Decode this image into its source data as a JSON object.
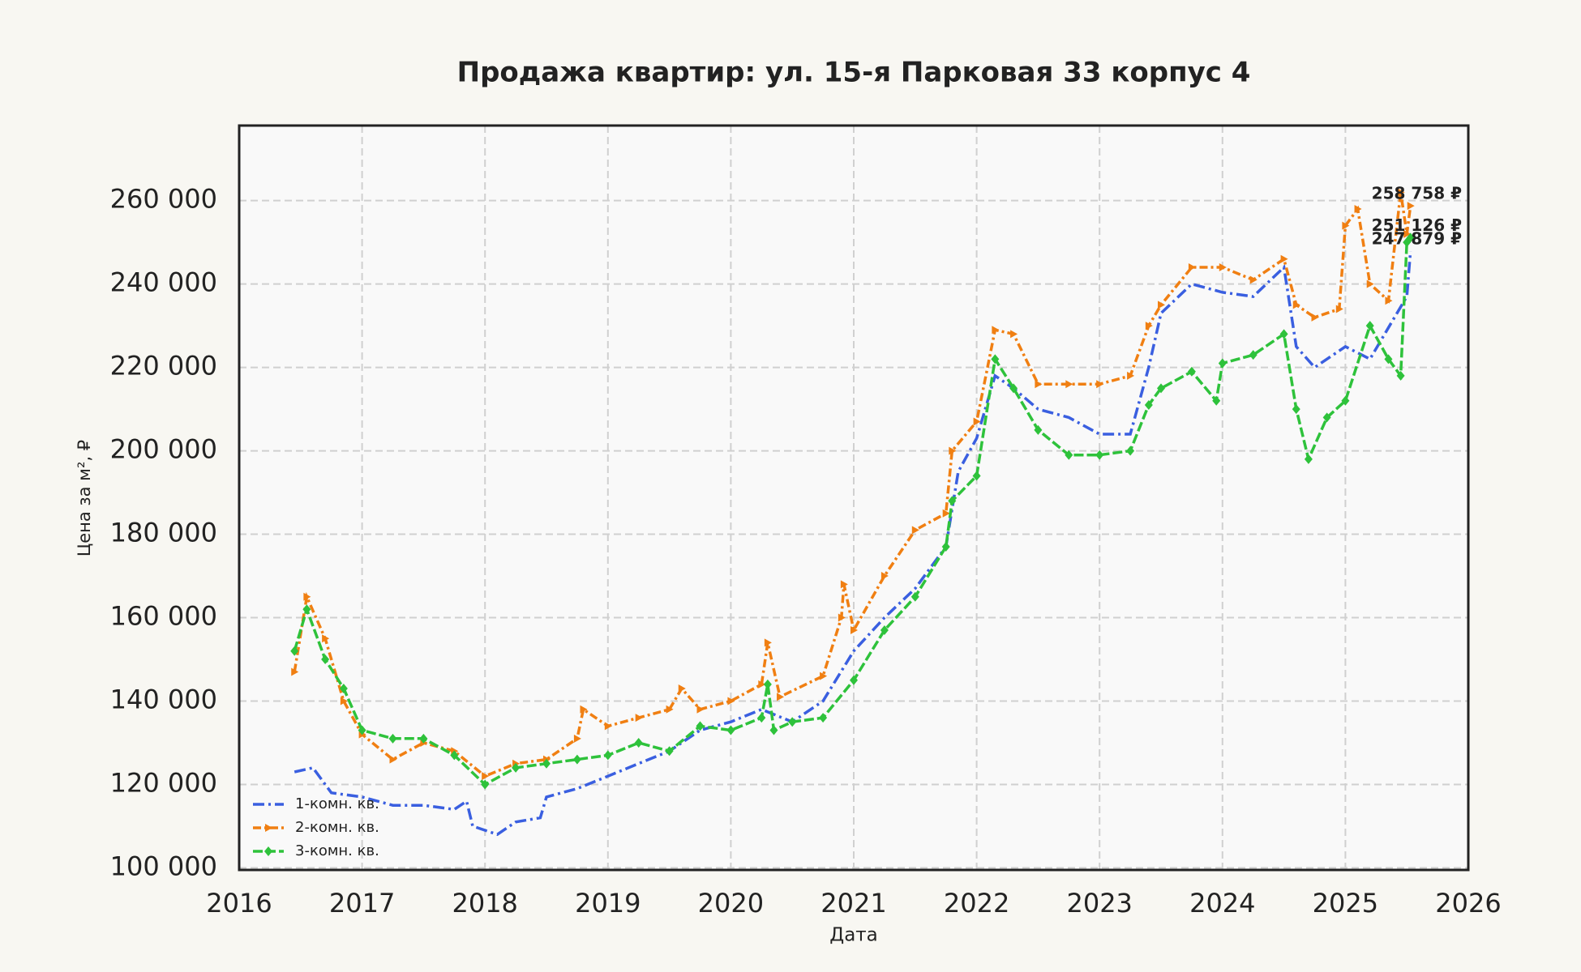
{
  "chart_data": {
    "type": "line",
    "title": "Продажа квартир: ул. 15-я Парковая 33 корпус 4",
    "x_label": "Дата",
    "y_label": "Цена за м², ₽",
    "xlim": [
      2016,
      2026
    ],
    "xticks": [
      2016,
      2017,
      2018,
      2019,
      2020,
      2021,
      2022,
      2023,
      2024,
      2025,
      2026
    ],
    "ylim": [
      99500,
      278000
    ],
    "yticks": [
      {
        "value": 100000,
        "label": "100 000"
      },
      {
        "value": 120000,
        "label": "120 000"
      },
      {
        "value": 140000,
        "label": "140 000"
      },
      {
        "value": 160000,
        "label": "160 000"
      },
      {
        "value": 180000,
        "label": "180 000"
      },
      {
        "value": 200000,
        "label": "200 000"
      },
      {
        "value": 220000,
        "label": "220 000"
      },
      {
        "value": 240000,
        "label": "240 000"
      },
      {
        "value": 260000,
        "label": "260 000"
      }
    ],
    "grid": true,
    "legend": "lower left",
    "series": [
      {
        "name": "1-комн. кв.",
        "color": "#3a5fe0",
        "marker": "none",
        "end_label": "247 879 ₽",
        "x": [
          2016.45,
          2016.6,
          2016.75,
          2017.0,
          2017.25,
          2017.5,
          2017.75,
          2017.85,
          2017.9,
          2018.1,
          2018.25,
          2018.45,
          2018.5,
          2018.75,
          2019.0,
          2019.25,
          2019.5,
          2019.75,
          2020.0,
          2020.25,
          2020.5,
          2020.75,
          2021.0,
          2021.25,
          2021.5,
          2021.75,
          2021.85,
          2022.0,
          2022.15,
          2022.3,
          2022.5,
          2022.75,
          2023.0,
          2023.25,
          2023.4,
          2023.5,
          2023.75,
          2024.0,
          2024.25,
          2024.5,
          2024.6,
          2024.75,
          2025.0,
          2025.2,
          2025.4,
          2025.5,
          2025.53
        ],
        "values": [
          123000,
          124000,
          118000,
          117000,
          115000,
          115000,
          114000,
          116000,
          110000,
          108000,
          111000,
          112000,
          117000,
          119000,
          122000,
          125000,
          128000,
          133000,
          135000,
          138000,
          135000,
          140000,
          152000,
          160000,
          167000,
          177000,
          195000,
          203000,
          218000,
          215000,
          210000,
          208000,
          204000,
          204000,
          220000,
          233000,
          240000,
          238000,
          237000,
          244000,
          225000,
          220000,
          225000,
          222000,
          232000,
          237000,
          247879
        ]
      },
      {
        "name": "2-комн. кв.",
        "color": "#f07f12",
        "marker": "triangle",
        "end_label": "258 758 ₽",
        "x": [
          2016.45,
          2016.55,
          2016.7,
          2016.85,
          2017.0,
          2017.25,
          2017.5,
          2017.75,
          2018.0,
          2018.25,
          2018.5,
          2018.75,
          2018.8,
          2019.0,
          2019.25,
          2019.5,
          2019.6,
          2019.75,
          2020.0,
          2020.25,
          2020.3,
          2020.4,
          2020.75,
          2020.9,
          2020.92,
          2021.0,
          2021.25,
          2021.5,
          2021.75,
          2021.8,
          2022.0,
          2022.15,
          2022.3,
          2022.5,
          2022.75,
          2023.0,
          2023.25,
          2023.4,
          2023.5,
          2023.75,
          2024.0,
          2024.25,
          2024.5,
          2024.6,
          2024.75,
          2024.95,
          2025.0,
          2025.1,
          2025.2,
          2025.35,
          2025.45,
          2025.5,
          2025.53
        ],
        "values": [
          147000,
          165000,
          155000,
          140000,
          132000,
          126000,
          130000,
          128000,
          122000,
          125000,
          126000,
          131000,
          138000,
          134000,
          136000,
          138000,
          143000,
          138000,
          140000,
          144000,
          154000,
          141000,
          146000,
          160000,
          168000,
          157000,
          170000,
          181000,
          185000,
          200000,
          207000,
          229000,
          228000,
          216000,
          216000,
          216000,
          218000,
          230000,
          235000,
          244000,
          244000,
          241000,
          246000,
          235000,
          232000,
          234000,
          254000,
          258000,
          240000,
          236000,
          262000,
          252000,
          258758
        ]
      },
      {
        "name": "3-комн. кв.",
        "color": "#2ec23b",
        "marker": "diamond",
        "end_label": "251 126 ₽",
        "x": [
          2016.45,
          2016.55,
          2016.7,
          2016.85,
          2017.0,
          2017.25,
          2017.5,
          2017.75,
          2018.0,
          2018.25,
          2018.5,
          2018.75,
          2019.0,
          2019.25,
          2019.5,
          2019.75,
          2020.0,
          2020.25,
          2020.3,
          2020.35,
          2020.5,
          2020.75,
          2021.0,
          2021.25,
          2021.5,
          2021.75,
          2021.8,
          2022.0,
          2022.15,
          2022.3,
          2022.5,
          2022.75,
          2023.0,
          2023.25,
          2023.4,
          2023.5,
          2023.75,
          2023.95,
          2024.0,
          2024.25,
          2024.5,
          2024.6,
          2024.7,
          2024.85,
          2025.0,
          2025.2,
          2025.35,
          2025.45,
          2025.5,
          2025.53
        ],
        "values": [
          152000,
          162000,
          150000,
          143000,
          133000,
          131000,
          131000,
          127000,
          120000,
          124000,
          125000,
          126000,
          127000,
          130000,
          128000,
          134000,
          133000,
          136000,
          144000,
          133000,
          135000,
          136000,
          145000,
          157000,
          165000,
          177000,
          188000,
          194000,
          222000,
          215000,
          205000,
          199000,
          199000,
          200000,
          211000,
          215000,
          219000,
          212000,
          221000,
          223000,
          228000,
          210000,
          198000,
          208000,
          212000,
          230000,
          222000,
          218000,
          250000,
          251126
        ]
      }
    ]
  }
}
